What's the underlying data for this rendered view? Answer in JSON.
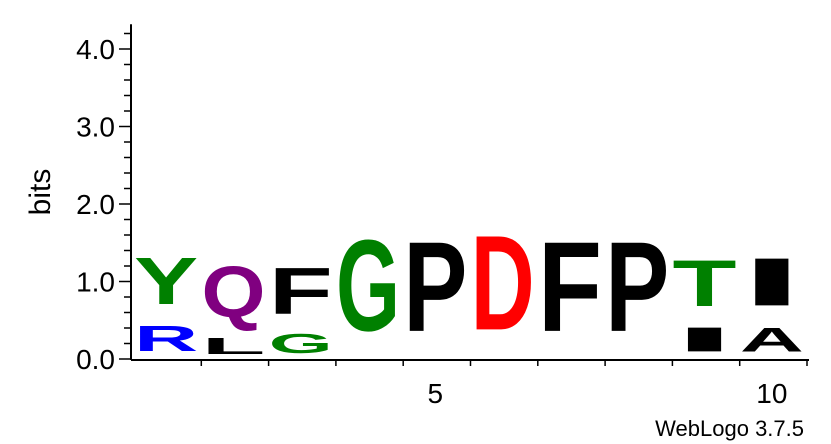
{
  "chart_data": {
    "type": "sequence-logo",
    "ylabel": "bits",
    "ylim": [
      0,
      4.32
    ],
    "y_ticks": [
      "0.0",
      "1.0",
      "2.0",
      "3.0",
      "4.0"
    ],
    "x_tick_labels": [
      {
        "position": 5,
        "label": "5"
      },
      {
        "position": 10,
        "label": "10"
      }
    ],
    "credit": "WebLogo 3.7.5",
    "colors": {
      "R": "#0000ff",
      "Y": "#008000",
      "T": "#008000",
      "G": "#008000",
      "Q": "#800080",
      "D": "#ff0000",
      "L": "#000000",
      "F": "#000000",
      "P": "#000000",
      "I": "#000000",
      "A": "#000000"
    },
    "positions": [
      {
        "index": 1,
        "letters": [
          {
            "letter": "R",
            "bits": 0.52
          },
          {
            "letter": "Y",
            "bits": 0.97
          }
        ]
      },
      {
        "index": 2,
        "letters": [
          {
            "letter": "L",
            "bits": 0.34
          },
          {
            "letter": "Q",
            "bits": 1.05
          }
        ]
      },
      {
        "index": 3,
        "letters": [
          {
            "letter": "G",
            "bits": 0.4
          },
          {
            "letter": "F",
            "bits": 0.95
          }
        ]
      },
      {
        "index": 4,
        "letters": [
          {
            "letter": "G",
            "bits": 1.88
          }
        ]
      },
      {
        "index": 5,
        "letters": [
          {
            "letter": "P",
            "bits": 1.85
          }
        ]
      },
      {
        "index": 6,
        "letters": [
          {
            "letter": "D",
            "bits": 1.95
          }
        ]
      },
      {
        "index": 7,
        "letters": [
          {
            "letter": "F",
            "bits": 1.85
          }
        ]
      },
      {
        "index": 8,
        "letters": [
          {
            "letter": "P",
            "bits": 1.85
          }
        ]
      },
      {
        "index": 9,
        "letters": [
          {
            "letter": "I",
            "bits": 0.5
          },
          {
            "letter": "T",
            "bits": 0.95
          }
        ]
      },
      {
        "index": 10,
        "letters": [
          {
            "letter": "A",
            "bits": 0.5
          },
          {
            "letter": "I",
            "bits": 0.98
          }
        ]
      }
    ]
  }
}
